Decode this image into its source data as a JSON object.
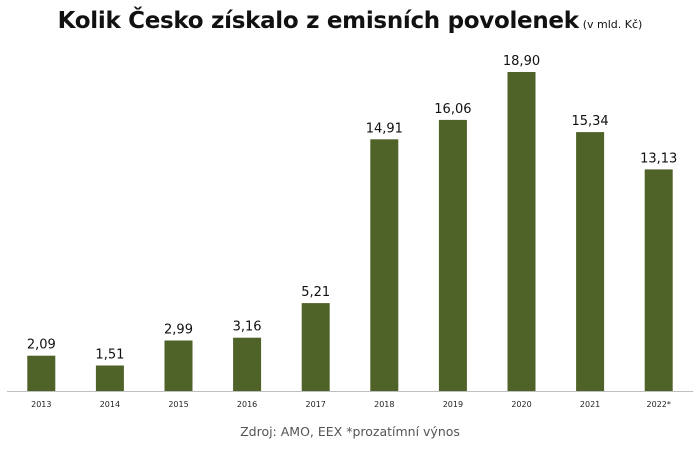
{
  "chart_data": {
    "type": "bar",
    "title": "Kolik Česko získalo z emisních povolenek",
    "subtitle": "(v mld. Kč)",
    "categories": [
      "2013",
      "2014",
      "2015",
      "2016",
      "2017",
      "2018",
      "2019",
      "2020",
      "2021",
      "2022*"
    ],
    "values": [
      2.09,
      1.51,
      2.99,
      3.16,
      5.21,
      14.91,
      16.06,
      18.9,
      15.34,
      13.13
    ],
    "value_labels": [
      "2,09",
      "1,51",
      "2,99",
      "3,16",
      "5,21",
      "14,91",
      "16,06",
      "18,90",
      "15,34",
      "13,13"
    ],
    "xlabel": "",
    "ylabel": "",
    "ylim": [
      0,
      20
    ],
    "grid": false,
    "bar_color": "#4f6228",
    "baseline_color": "#bfbfbf",
    "source": "Zdroj: AMO, EEX *prozatímní výnos"
  }
}
